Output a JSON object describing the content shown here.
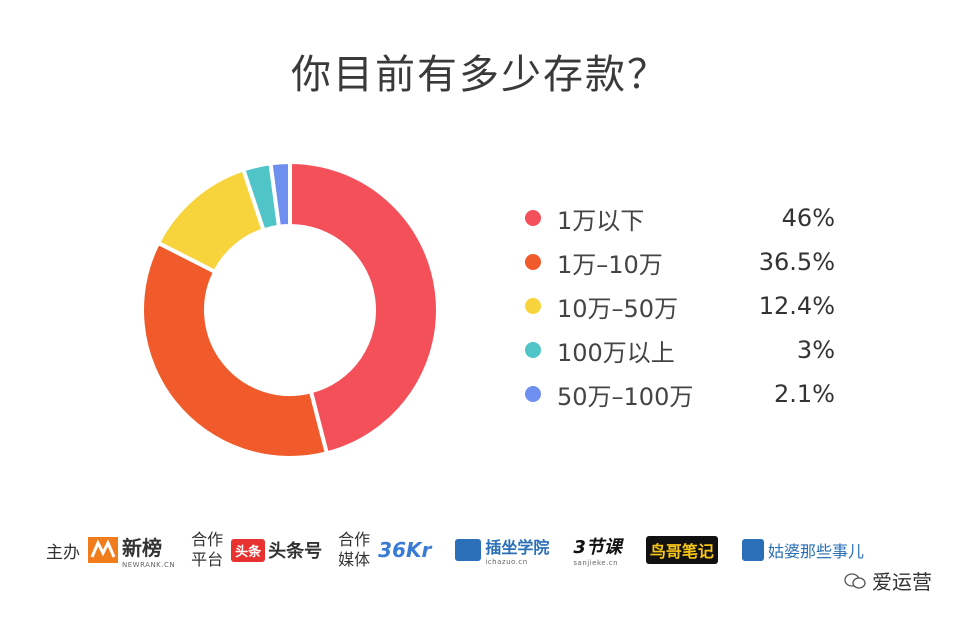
{
  "title": "你目前有多少存款？",
  "chart_data": {
    "type": "pie",
    "donut": true,
    "title": "你目前有多少存款？",
    "slices": [
      {
        "label": "1万以下",
        "value": 46,
        "display": "46%",
        "color": "#f4505a"
      },
      {
        "label": "1万–10万",
        "value": 36.5,
        "display": "36.5%",
        "color": "#f15a2a"
      },
      {
        "label": "10万–50万",
        "value": 12.4,
        "display": "12.4%",
        "color": "#f7d33c"
      },
      {
        "label": "100万以上",
        "value": 3,
        "display": "3%",
        "color": "#4fc5c8"
      },
      {
        "label": "50万–100万",
        "value": 2.1,
        "display": "2.1%",
        "color": "#6f8ff0"
      }
    ],
    "legend_position": "right"
  },
  "footer": {
    "host_label": "主办",
    "host_logo_text": "新榜",
    "host_logo_sub": "NEWRANK.CN",
    "platform_label_1": "合作",
    "platform_label_2": "平台",
    "platform_logo_badge": "头条",
    "platform_logo_text": "头条号",
    "media_label_1": "合作",
    "media_label_2": "媒体",
    "media_logos": [
      "36Kr",
      "插坐学院",
      "3节课",
      "鸟哥笔记",
      "姑婆那些事儿"
    ],
    "media_logo_subs": [
      "",
      "ichazuo.cn",
      "sanjieke.cn",
      "",
      ""
    ]
  },
  "watermark": "爱运营",
  "colors": {
    "donut_gap": "#ffffff",
    "title": "#3a3a3a"
  }
}
